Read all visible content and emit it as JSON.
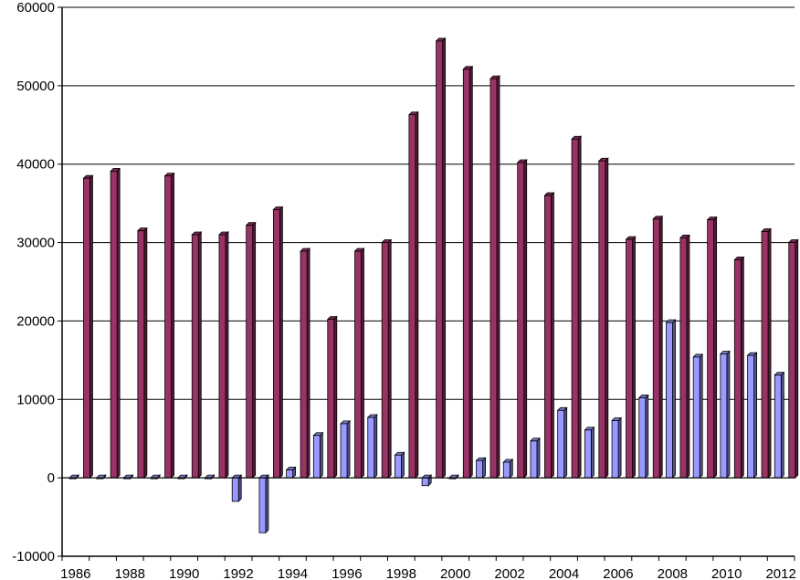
{
  "chart_data": {
    "type": "bar",
    "categories": [
      "1986",
      "1987",
      "1988",
      "1989",
      "1990",
      "1991",
      "1992",
      "1993",
      "1994",
      "1995",
      "1996",
      "1997",
      "1998",
      "1999",
      "2000",
      "2001",
      "2002",
      "2003",
      "2004",
      "2005",
      "2006",
      "2007",
      "2008",
      "2009",
      "2010",
      "2011",
      "2012"
    ],
    "x_tick_labels": [
      "1986",
      "1988",
      "1990",
      "1992",
      "1994",
      "1996",
      "1998",
      "2000",
      "2002",
      "2004",
      "2006",
      "2008",
      "2010",
      "2012"
    ],
    "y_tick_labels": [
      "60000",
      "50000",
      "40000",
      "30000",
      "20000",
      "10000",
      "0",
      "-10000"
    ],
    "ylim": [
      -10000,
      60000
    ],
    "y_ticks": [
      -10000,
      0,
      10000,
      20000,
      30000,
      40000,
      50000,
      60000
    ],
    "grid": true,
    "legend": "none",
    "series": [
      {
        "color": "#9999ff",
        "values": [
          0,
          0,
          0,
          0,
          0,
          0,
          -3000,
          -7000,
          1000,
          5400,
          6900,
          7700,
          2900,
          -1000,
          0,
          2200,
          2000,
          4700,
          8600,
          6100,
          7300,
          10200,
          19800,
          15400,
          15800,
          15600,
          13100
        ]
      },
      {
        "color": "#993366",
        "values": [
          38200,
          39100,
          31500,
          38500,
          31000,
          31000,
          32200,
          34200,
          28900,
          20200,
          28900,
          30000,
          46300,
          55700,
          52100,
          50900,
          40200,
          36000,
          43200,
          40400,
          30400,
          33000,
          30600,
          32900,
          27800,
          31400,
          30000
        ]
      }
    ]
  }
}
